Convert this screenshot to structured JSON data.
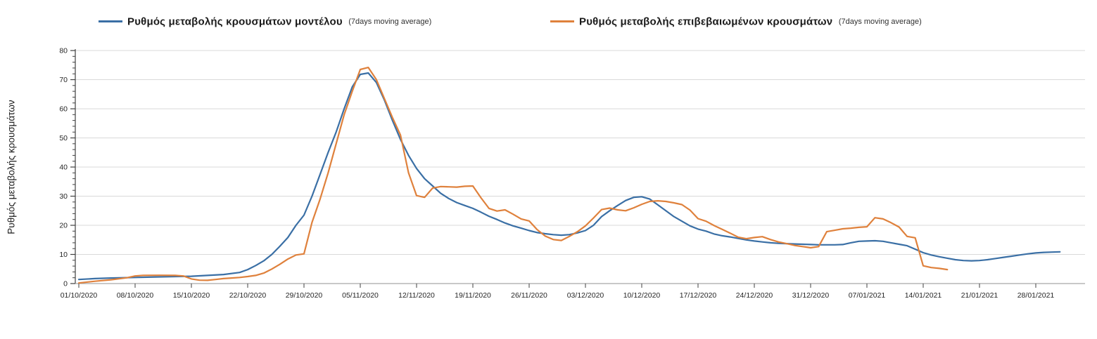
{
  "legend": {
    "items": [
      {
        "label": "Ρυθμός μεταβολής κρουσμάτων μοντέλου",
        "suffix": "(7days moving average)",
        "color": "#3a6fa5"
      },
      {
        "label": "Ρυθμός μεταβολής επιβεβαιωμένων κρουσμάτων",
        "suffix": "(7days moving average)",
        "color": "#df813c"
      }
    ]
  },
  "chart_data": {
    "type": "line",
    "title": "",
    "xlabel": "",
    "ylabel": "Ρυθμός μεταβολής κρουσμάτων",
    "ylim": [
      0,
      80
    ],
    "y_major_step": 10,
    "y_minor_step": 2,
    "grid": true,
    "legend_position": "top",
    "axis_color": "#404040",
    "x_axis_line_color": "#a6a6a6",
    "grid_color": "#d9d9d9",
    "tick_label_color": "#262626",
    "x_unit": "days since 01/10/2020, weekly ticks",
    "x_tick_days": [
      0,
      7,
      14,
      21,
      28,
      35,
      42,
      49,
      56,
      63,
      70,
      77,
      84,
      91,
      98,
      105,
      112,
      119
    ],
    "x_tick_labels": [
      "01/10/2020",
      "08/10/2020",
      "15/10/2020",
      "22/10/2020",
      "29/10/2020",
      "05/11/2020",
      "12/11/2020",
      "19/11/2020",
      "26/11/2020",
      "03/12/2020",
      "10/12/2020",
      "17/12/2020",
      "24/12/2020",
      "31/12/2020",
      "07/01/2021",
      "14/01/2021",
      "21/01/2021",
      "28/01/2021"
    ],
    "series": [
      {
        "name": "Ρυθμός μεταβολής κρουσμάτων μοντέλου (7days moving average)",
        "color": "#3a6fa5",
        "points": [
          [
            0,
            1.4
          ],
          [
            2,
            1.7
          ],
          [
            4,
            1.9
          ],
          [
            7,
            2.1
          ],
          [
            10,
            2.3
          ],
          [
            14,
            2.5
          ],
          [
            16,
            2.8
          ],
          [
            18,
            3.1
          ],
          [
            20,
            3.8
          ],
          [
            21,
            4.8
          ],
          [
            22,
            6.2
          ],
          [
            23,
            7.8
          ],
          [
            24,
            10.0
          ],
          [
            25,
            12.8
          ],
          [
            26,
            15.8
          ],
          [
            27,
            20.0
          ],
          [
            28,
            23.5
          ],
          [
            29,
            30.0
          ],
          [
            30,
            37.5
          ],
          [
            31,
            45.0
          ],
          [
            32,
            52.0
          ],
          [
            33,
            60.0
          ],
          [
            34,
            67.5
          ],
          [
            35,
            71.8
          ],
          [
            36,
            72.3
          ],
          [
            37,
            69.0
          ],
          [
            38,
            63.0
          ],
          [
            39,
            56.0
          ],
          [
            40,
            49.5
          ],
          [
            41,
            44.0
          ],
          [
            42,
            39.5
          ],
          [
            43,
            36.0
          ],
          [
            44,
            33.5
          ],
          [
            45,
            31.0
          ],
          [
            46,
            29.2
          ],
          [
            47,
            27.8
          ],
          [
            48,
            26.8
          ],
          [
            49,
            25.8
          ],
          [
            50,
            24.5
          ],
          [
            51,
            23.1
          ],
          [
            52,
            22.0
          ],
          [
            53,
            20.8
          ],
          [
            54,
            19.8
          ],
          [
            55,
            19.0
          ],
          [
            56,
            18.2
          ],
          [
            57,
            17.5
          ],
          [
            58,
            17.1
          ],
          [
            59,
            16.8
          ],
          [
            60,
            16.6
          ],
          [
            61,
            16.8
          ],
          [
            62,
            17.4
          ],
          [
            63,
            18.2
          ],
          [
            64,
            20.0
          ],
          [
            65,
            23.0
          ],
          [
            66,
            25.0
          ],
          [
            67,
            26.8
          ],
          [
            68,
            28.5
          ],
          [
            69,
            29.6
          ],
          [
            70,
            29.8
          ],
          [
            71,
            29.0
          ],
          [
            72,
            27.0
          ],
          [
            73,
            25.0
          ],
          [
            74,
            23.0
          ],
          [
            75,
            21.4
          ],
          [
            76,
            19.8
          ],
          [
            77,
            18.7
          ],
          [
            78,
            18.0
          ],
          [
            79,
            17.0
          ],
          [
            80,
            16.4
          ],
          [
            81,
            16.0
          ],
          [
            82,
            15.5
          ],
          [
            83,
            15.0
          ],
          [
            84,
            14.6
          ],
          [
            85,
            14.3
          ],
          [
            86,
            14.0
          ],
          [
            87,
            13.8
          ],
          [
            88,
            13.7
          ],
          [
            89,
            13.6
          ],
          [
            90,
            13.5
          ],
          [
            91,
            13.4
          ],
          [
            92,
            13.3
          ],
          [
            93,
            13.3
          ],
          [
            94,
            13.3
          ],
          [
            95,
            13.4
          ],
          [
            96,
            14.0
          ],
          [
            97,
            14.5
          ],
          [
            98,
            14.6
          ],
          [
            99,
            14.7
          ],
          [
            100,
            14.5
          ],
          [
            101,
            14.0
          ],
          [
            102,
            13.5
          ],
          [
            103,
            13.0
          ],
          [
            104,
            11.8
          ],
          [
            105,
            10.6
          ],
          [
            106,
            9.8
          ],
          [
            107,
            9.2
          ],
          [
            108,
            8.7
          ],
          [
            109,
            8.2
          ],
          [
            110,
            7.9
          ],
          [
            111,
            7.8
          ],
          [
            112,
            7.9
          ],
          [
            113,
            8.2
          ],
          [
            114,
            8.6
          ],
          [
            115,
            9.0
          ],
          [
            116,
            9.4
          ],
          [
            117,
            9.8
          ],
          [
            118,
            10.2
          ],
          [
            119,
            10.5
          ],
          [
            120,
            10.7
          ],
          [
            121,
            10.8
          ],
          [
            122,
            10.9
          ]
        ]
      },
      {
        "name": "Ρυθμός μεταβολής επιβεβαιωμένων κρουσμάτων (7days moving average)",
        "color": "#df813c",
        "points": [
          [
            0,
            0.2
          ],
          [
            2,
            0.8
          ],
          [
            4,
            1.3
          ],
          [
            6,
            2.0
          ],
          [
            7,
            2.6
          ],
          [
            8,
            2.8
          ],
          [
            10,
            2.85
          ],
          [
            12,
            2.8
          ],
          [
            13,
            2.6
          ],
          [
            14,
            1.6
          ],
          [
            15,
            1.15
          ],
          [
            16,
            1.1
          ],
          [
            17,
            1.4
          ],
          [
            18,
            1.7
          ],
          [
            19,
            1.9
          ],
          [
            20,
            2.1
          ],
          [
            21,
            2.4
          ],
          [
            22,
            2.8
          ],
          [
            23,
            3.6
          ],
          [
            24,
            5.0
          ],
          [
            25,
            6.6
          ],
          [
            26,
            8.4
          ],
          [
            27,
            9.8
          ],
          [
            28,
            10.2
          ],
          [
            29,
            21.0
          ],
          [
            30,
            29.0
          ],
          [
            31,
            38.0
          ],
          [
            32,
            48.0
          ],
          [
            33,
            58.0
          ],
          [
            34,
            66.0
          ],
          [
            35,
            73.5
          ],
          [
            36,
            74.2
          ],
          [
            37,
            70.0
          ],
          [
            38,
            63.5
          ],
          [
            39,
            57.0
          ],
          [
            40,
            51.0
          ],
          [
            41,
            38.0
          ],
          [
            42,
            30.2
          ],
          [
            43,
            29.6
          ],
          [
            44,
            32.8
          ],
          [
            45,
            33.3
          ],
          [
            46,
            33.2
          ],
          [
            47,
            33.1
          ],
          [
            48,
            33.4
          ],
          [
            49,
            33.5
          ],
          [
            50,
            29.5
          ],
          [
            51,
            25.8
          ],
          [
            52,
            24.9
          ],
          [
            53,
            25.3
          ],
          [
            54,
            23.8
          ],
          [
            55,
            22.2
          ],
          [
            56,
            21.5
          ],
          [
            57,
            18.5
          ],
          [
            58,
            16.3
          ],
          [
            59,
            15.1
          ],
          [
            60,
            14.8
          ],
          [
            61,
            16.2
          ],
          [
            62,
            17.8
          ],
          [
            63,
            19.8
          ],
          [
            64,
            22.5
          ],
          [
            65,
            25.4
          ],
          [
            66,
            25.9
          ],
          [
            67,
            25.3
          ],
          [
            68,
            25.0
          ],
          [
            69,
            26.0
          ],
          [
            70,
            27.2
          ],
          [
            71,
            28.2
          ],
          [
            72,
            28.4
          ],
          [
            73,
            28.2
          ],
          [
            74,
            27.7
          ],
          [
            75,
            27.1
          ],
          [
            76,
            25.2
          ],
          [
            77,
            22.3
          ],
          [
            78,
            21.4
          ],
          [
            79,
            19.9
          ],
          [
            80,
            18.6
          ],
          [
            81,
            17.3
          ],
          [
            82,
            15.9
          ],
          [
            83,
            15.4
          ],
          [
            84,
            15.8
          ],
          [
            85,
            16.1
          ],
          [
            86,
            15.1
          ],
          [
            87,
            14.3
          ],
          [
            88,
            13.7
          ],
          [
            89,
            13.1
          ],
          [
            90,
            12.7
          ],
          [
            91,
            12.3
          ],
          [
            92,
            12.7
          ],
          [
            93,
            17.8
          ],
          [
            94,
            18.3
          ],
          [
            95,
            18.8
          ],
          [
            96,
            19.0
          ],
          [
            97,
            19.3
          ],
          [
            98,
            19.5
          ],
          [
            99,
            22.6
          ],
          [
            100,
            22.2
          ],
          [
            101,
            20.9
          ],
          [
            102,
            19.4
          ],
          [
            103,
            16.2
          ],
          [
            104,
            15.7
          ],
          [
            105,
            6.1
          ],
          [
            106,
            5.5
          ],
          [
            107,
            5.2
          ],
          [
            108,
            4.8
          ]
        ]
      }
    ]
  }
}
